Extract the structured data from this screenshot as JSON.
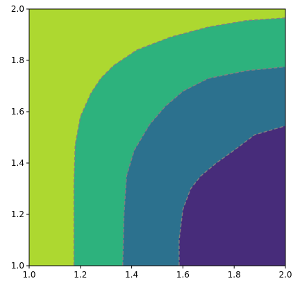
{
  "chart_data": {
    "type": "contour",
    "title": "",
    "xlabel": "",
    "ylabel": "",
    "xlim": [
      1.0,
      2.0
    ],
    "ylim": [
      1.0,
      2.0
    ],
    "grid": false,
    "legend": "none",
    "x_ticks": [
      "1.0",
      "1.2",
      "1.4",
      "1.6",
      "1.8",
      "2.0"
    ],
    "y_ticks": [
      "1.0",
      "1.2",
      "1.4",
      "1.6",
      "1.8",
      "2.0"
    ],
    "regions": [
      {
        "name": "",
        "color": "#add830"
      },
      {
        "name": "",
        "color": "#2db27d"
      },
      {
        "name": "",
        "color": "#2c718e"
      },
      {
        "name": "",
        "color": "#472c7a"
      }
    ],
    "contour_lines": [
      {
        "color": "#808080",
        "style": "dashed",
        "points": [
          [
            1.175,
            1.0
          ],
          [
            1.175,
            1.32
          ],
          [
            1.18,
            1.47
          ],
          [
            1.2,
            1.58
          ],
          [
            1.24,
            1.67
          ],
          [
            1.28,
            1.73
          ],
          [
            1.33,
            1.78
          ],
          [
            1.42,
            1.84
          ],
          [
            1.55,
            1.89
          ],
          [
            1.7,
            1.93
          ],
          [
            1.85,
            1.955
          ],
          [
            2.0,
            1.965
          ]
        ]
      },
      {
        "color": "#808080",
        "style": "dashed",
        "points": [
          [
            1.365,
            1.0
          ],
          [
            1.37,
            1.2
          ],
          [
            1.38,
            1.35
          ],
          [
            1.41,
            1.45
          ],
          [
            1.47,
            1.55
          ],
          [
            1.53,
            1.62
          ],
          [
            1.6,
            1.68
          ],
          [
            1.7,
            1.73
          ],
          [
            1.85,
            1.76
          ],
          [
            2.0,
            1.775
          ]
        ]
      },
      {
        "color": "#808080",
        "style": "dashed",
        "points": [
          [
            1.585,
            1.0
          ],
          [
            1.585,
            1.1
          ],
          [
            1.6,
            1.22
          ],
          [
            1.63,
            1.3
          ],
          [
            1.67,
            1.35
          ],
          [
            1.73,
            1.4
          ],
          [
            1.8,
            1.45
          ],
          [
            1.88,
            1.51
          ],
          [
            2.0,
            1.545
          ]
        ]
      }
    ]
  }
}
